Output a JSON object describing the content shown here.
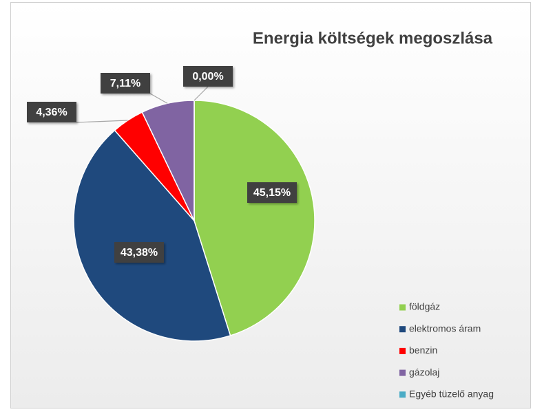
{
  "chart_data": {
    "type": "pie",
    "title": "Energia költségek megoszlása",
    "categories": [
      "földgáz",
      "elektromos áram",
      "benzin",
      "gázolaj",
      "Egyéb tüzelő anyag"
    ],
    "values": [
      45.15,
      43.38,
      4.36,
      7.11,
      0.0
    ],
    "value_labels": [
      "45,15%",
      "43,38%",
      "4,36%",
      "7,11%",
      "0,00%"
    ],
    "colors": [
      "#92d050",
      "#1f497d",
      "#ff0000",
      "#8064a2",
      "#4bacc6"
    ],
    "legend": "bottom-right"
  }
}
